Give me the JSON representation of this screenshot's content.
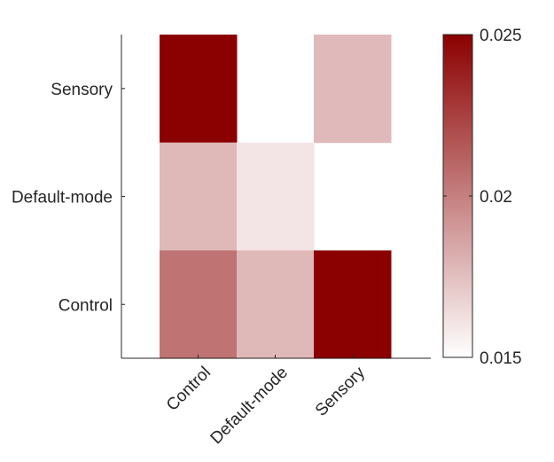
{
  "chart_data": {
    "type": "heatmap",
    "title": "",
    "xlabel": "",
    "ylabel": "",
    "x_categories": [
      "Control",
      "Default-mode",
      "Sensory"
    ],
    "y_categories_top_to_bottom": [
      "Sensory",
      "Default-mode",
      "Control"
    ],
    "values": [
      [
        0.025,
        null,
        0.0177
      ],
      [
        0.0178,
        0.016,
        null
      ],
      [
        0.0205,
        0.0178,
        0.025
      ]
    ],
    "colorbar": {
      "min": 0.015,
      "max": 0.025,
      "ticks": [
        0.015,
        0.02,
        0.025
      ],
      "tick_labels": [
        "0.015",
        "0.02",
        "0.025"
      ],
      "color_low": "#ffffff",
      "color_high": "#8b0000"
    },
    "missing_cell_color": "#ffffff"
  }
}
